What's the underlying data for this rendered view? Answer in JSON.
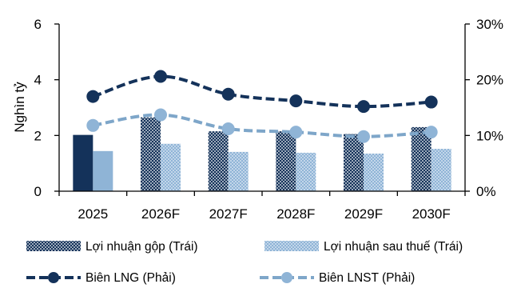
{
  "colors": {
    "gross_profit": "#14325a",
    "net_profit": "#8fb4d6",
    "gross_margin_line": "#14325a",
    "net_margin_line": "#7ea6c9",
    "axis": "#000000"
  },
  "chart_data": {
    "type": "bar",
    "categories": [
      "2025",
      "2026F",
      "2027F",
      "2028F",
      "2029F",
      "2030F"
    ],
    "ylabel": "Nghìn tỷ",
    "ylim": [
      0,
      6
    ],
    "y_ticks": [
      "0",
      "2",
      "4",
      "6"
    ],
    "y2lim": [
      0,
      30
    ],
    "y2_ticks": [
      "0%",
      "10%",
      "20%",
      "30%"
    ],
    "grid": false,
    "legend_position": "bottom",
    "series": [
      {
        "name": "Lợi nhuận gộp (Trái)",
        "type": "bar",
        "axis": "left",
        "values": [
          2.02,
          2.65,
          2.15,
          2.15,
          2.05,
          2.3
        ],
        "patterned_from_index": 1
      },
      {
        "name": "Lợi nhuận sau thuế (Trái)",
        "type": "bar",
        "axis": "left",
        "values": [
          1.44,
          1.7,
          1.41,
          1.38,
          1.35,
          1.52
        ],
        "patterned_from_index": 1
      },
      {
        "name": "Biên LNG (Phải)",
        "type": "line",
        "axis": "right",
        "style": "dashed",
        "values": [
          17,
          20.6,
          17.4,
          16.2,
          15.2,
          16
        ]
      },
      {
        "name": "Biên LNST (Phải)",
        "type": "line",
        "axis": "right",
        "style": "dashed",
        "values": [
          11.8,
          13.7,
          11.2,
          10.6,
          9.8,
          10.6
        ]
      }
    ]
  }
}
